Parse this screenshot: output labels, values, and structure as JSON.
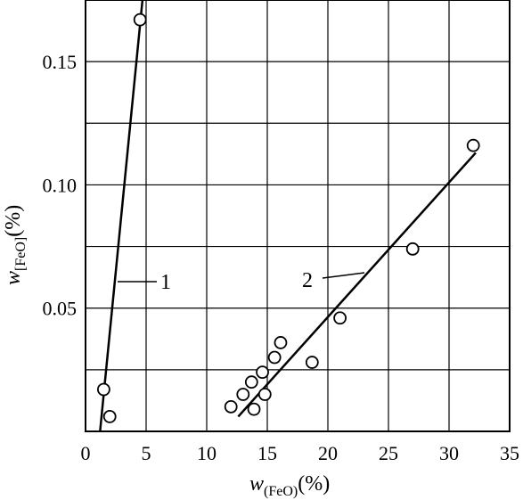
{
  "chart_data": {
    "type": "scatter",
    "title": "",
    "xlabel": {
      "var": "w",
      "sub": "(FeO)",
      "unit": "(%)"
    },
    "ylabel": {
      "var": "w",
      "sub": "[FeO]",
      "unit": "(%)"
    },
    "xlim": [
      0,
      35
    ],
    "ylim": [
      0,
      0.175
    ],
    "x_ticks": [
      0,
      5,
      10,
      15,
      20,
      25,
      30,
      35
    ],
    "y_ticks": [
      0.05,
      0.1,
      0.15
    ],
    "x_tick_labels": [
      "0",
      "5",
      "10",
      "15",
      "20",
      "25",
      "30",
      "35"
    ],
    "y_tick_labels": [
      "0.05",
      "0.10",
      "0.15"
    ],
    "grid": true,
    "grid_y_values": [
      0.025,
      0.05,
      0.075,
      0.1,
      0.125,
      0.15
    ],
    "series": [
      {
        "name": "1",
        "points": [
          {
            "x": 1.5,
            "y": 0.017
          },
          {
            "x": 2.0,
            "y": 0.006
          },
          {
            "x": 4.5,
            "y": 0.167
          }
        ],
        "fit_line": [
          [
            1.2,
            0.0
          ],
          [
            4.7,
            0.175
          ]
        ]
      },
      {
        "name": "2",
        "points": [
          {
            "x": 12.0,
            "y": 0.01
          },
          {
            "x": 13.0,
            "y": 0.015
          },
          {
            "x": 13.7,
            "y": 0.02
          },
          {
            "x": 13.9,
            "y": 0.009
          },
          {
            "x": 14.6,
            "y": 0.024
          },
          {
            "x": 14.8,
            "y": 0.015
          },
          {
            "x": 15.6,
            "y": 0.03
          },
          {
            "x": 16.1,
            "y": 0.036
          },
          {
            "x": 18.7,
            "y": 0.028
          },
          {
            "x": 21.0,
            "y": 0.046
          },
          {
            "x": 27.0,
            "y": 0.074
          },
          {
            "x": 32.0,
            "y": 0.116
          }
        ],
        "fit_line": [
          [
            12.6,
            0.006
          ],
          [
            32.2,
            0.113
          ]
        ]
      }
    ],
    "annotations": [
      {
        "text": "1",
        "target_series": "1"
      },
      {
        "text": "2",
        "target_series": "2"
      }
    ]
  }
}
